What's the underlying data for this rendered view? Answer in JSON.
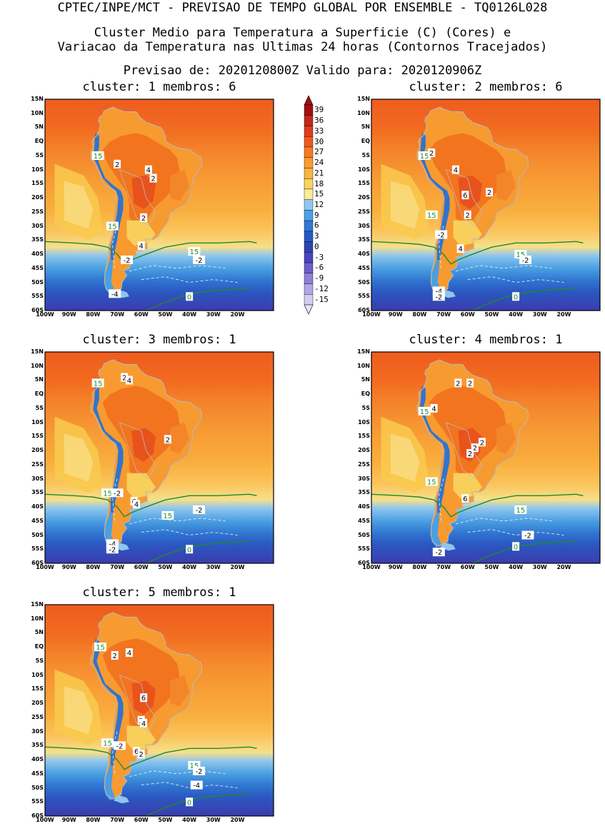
{
  "header": {
    "line1": "CPTEC/INPE/MCT - PREVISAO DE TEMPO GLOBAL POR ENSEMBLE - TQ0126L028",
    "line2": "Cluster Medio para Temperatura a Superficie (C) (Cores) e",
    "line3": "Variacao da Temperatura nas Ultimas 24 horas (Contornos Tracejados)",
    "line4": "Previsao de: 2020120800Z   Valido para: 2020120906Z"
  },
  "colorbar": {
    "labels": [
      "39",
      "36",
      "33",
      "30",
      "27",
      "24",
      "21",
      "18",
      "15",
      "12",
      "9",
      "6",
      "3",
      "0",
      "-3",
      "-6",
      "-9",
      "-12",
      "-15"
    ],
    "colors": [
      "#a01010",
      "#c0281c",
      "#de3c22",
      "#ef5a1e",
      "#f77a22",
      "#f99a33",
      "#fbb63e",
      "#fbd35c",
      "#f9ee97",
      "#8fc8ef",
      "#4aa1e6",
      "#2f78d6",
      "#2359c4",
      "#2b43b3",
      "#4a45bd",
      "#6b5fca",
      "#8d80d6",
      "#b0a6e3",
      "#d3ccef"
    ]
  },
  "axes": {
    "lat_labels": [
      "15N",
      "10N",
      "5N",
      "EQ",
      "5S",
      "10S",
      "15S",
      "20S",
      "25S",
      "30S",
      "35S",
      "40S",
      "45S",
      "50S",
      "55S",
      "60S"
    ],
    "lon_labels": [
      "100W",
      "90W",
      "80W",
      "70W",
      "60W",
      "50W",
      "40W",
      "30W",
      "20W"
    ]
  },
  "panels": [
    {
      "title": "cluster: 1   membros: 6",
      "labels": [
        {
          "t": "15",
          "kind": "green",
          "lon": -78,
          "lat": -5
        },
        {
          "t": "15",
          "kind": "green",
          "lon": -72,
          "lat": -30
        },
        {
          "t": "15",
          "kind": "green",
          "lon": -38,
          "lat": -39
        },
        {
          "t": "0",
          "kind": "green",
          "lon": -40,
          "lat": -55
        },
        {
          "t": "2",
          "kind": "white",
          "lon": -70,
          "lat": -8
        },
        {
          "t": "4",
          "kind": "white",
          "lon": -57,
          "lat": -10
        },
        {
          "t": "2",
          "kind": "white",
          "lon": -55,
          "lat": -13
        },
        {
          "t": "2",
          "kind": "white",
          "lon": -59,
          "lat": -27
        },
        {
          "t": "4",
          "kind": "white",
          "lon": -60,
          "lat": -37
        },
        {
          "t": "-2",
          "kind": "white",
          "lon": -66,
          "lat": -42
        },
        {
          "t": "-2",
          "kind": "white",
          "lon": -36,
          "lat": -42
        },
        {
          "t": "-4",
          "kind": "white",
          "lon": -71,
          "lat": -54
        }
      ]
    },
    {
      "title": "cluster: 2   membros: 6",
      "labels": [
        {
          "t": "15",
          "kind": "green",
          "lon": -78,
          "lat": -5
        },
        {
          "t": "15",
          "kind": "green",
          "lon": -75,
          "lat": -26
        },
        {
          "t": "15",
          "kind": "green",
          "lon": -38,
          "lat": -40
        },
        {
          "t": "0",
          "kind": "green",
          "lon": -40,
          "lat": -55
        },
        {
          "t": "2",
          "kind": "white",
          "lon": -75,
          "lat": -4
        },
        {
          "t": "4",
          "kind": "white",
          "lon": -65,
          "lat": -10
        },
        {
          "t": "6",
          "kind": "white",
          "lon": -61,
          "lat": -19
        },
        {
          "t": "2",
          "kind": "white",
          "lon": -51,
          "lat": -18
        },
        {
          "t": "2",
          "kind": "white",
          "lon": -60,
          "lat": -26
        },
        {
          "t": "-2",
          "kind": "white",
          "lon": -71,
          "lat": -33
        },
        {
          "t": "4",
          "kind": "white",
          "lon": -63,
          "lat": -38
        },
        {
          "t": "-2",
          "kind": "white",
          "lon": -36,
          "lat": -42
        },
        {
          "t": "-4",
          "kind": "white",
          "lon": -72,
          "lat": -53
        },
        {
          "t": "-2",
          "kind": "white",
          "lon": -72,
          "lat": -55
        }
      ]
    },
    {
      "title": "cluster: 3   membros: 1",
      "labels": [
        {
          "t": "15",
          "kind": "green",
          "lon": -78,
          "lat": 4
        },
        {
          "t": "15",
          "kind": "green",
          "lon": -74,
          "lat": -35
        },
        {
          "t": "15",
          "kind": "green",
          "lon": -49,
          "lat": -43
        },
        {
          "t": "0",
          "kind": "green",
          "lon": -40,
          "lat": -55
        },
        {
          "t": "2",
          "kind": "white",
          "lon": -67,
          "lat": 6
        },
        {
          "t": "4",
          "kind": "white",
          "lon": -65,
          "lat": 5
        },
        {
          "t": "2",
          "kind": "white",
          "lon": -49,
          "lat": -16
        },
        {
          "t": "-2",
          "kind": "white",
          "lon": -70,
          "lat": -35
        },
        {
          "t": "6",
          "kind": "white",
          "lon": -63,
          "lat": -38
        },
        {
          "t": "4",
          "kind": "white",
          "lon": -62,
          "lat": -39
        },
        {
          "t": "-2",
          "kind": "white",
          "lon": -36,
          "lat": -41
        },
        {
          "t": "-4",
          "kind": "white",
          "lon": -72,
          "lat": -53
        },
        {
          "t": "-2",
          "kind": "white",
          "lon": -72,
          "lat": -55
        }
      ]
    },
    {
      "title": "cluster: 4   membros: 1",
      "labels": [
        {
          "t": "15",
          "kind": "green",
          "lon": -78,
          "lat": -6
        },
        {
          "t": "15",
          "kind": "green",
          "lon": -75,
          "lat": -31
        },
        {
          "t": "15",
          "kind": "green",
          "lon": -38,
          "lat": -41
        },
        {
          "t": "0",
          "kind": "green",
          "lon": -40,
          "lat": -54
        },
        {
          "t": "4",
          "kind": "white",
          "lon": -74,
          "lat": -5
        },
        {
          "t": "2",
          "kind": "white",
          "lon": -64,
          "lat": 4
        },
        {
          "t": "2",
          "kind": "white",
          "lon": -59,
          "lat": 4
        },
        {
          "t": "2",
          "kind": "white",
          "lon": -54,
          "lat": -17
        },
        {
          "t": "2",
          "kind": "white",
          "lon": -57,
          "lat": -19
        },
        {
          "t": "2",
          "kind": "white",
          "lon": -59,
          "lat": -21
        },
        {
          "t": "6",
          "kind": "white",
          "lon": -61,
          "lat": -37
        },
        {
          "t": "-2",
          "kind": "white",
          "lon": -35,
          "lat": -50
        },
        {
          "t": "-2",
          "kind": "white",
          "lon": -72,
          "lat": -56
        }
      ]
    },
    {
      "title": "cluster: 5   membros: 1",
      "labels": [
        {
          "t": "15",
          "kind": "green",
          "lon": -77,
          "lat": 0
        },
        {
          "t": "15",
          "kind": "green",
          "lon": -74,
          "lat": -34
        },
        {
          "t": "15",
          "kind": "green",
          "lon": -38,
          "lat": -42
        },
        {
          "t": "0",
          "kind": "green",
          "lon": -40,
          "lat": -55
        },
        {
          "t": "2",
          "kind": "white",
          "lon": -71,
          "lat": -3
        },
        {
          "t": "4",
          "kind": "white",
          "lon": -65,
          "lat": -2
        },
        {
          "t": "6",
          "kind": "white",
          "lon": -59,
          "lat": -18
        },
        {
          "t": "2",
          "kind": "white",
          "lon": -60,
          "lat": -26
        },
        {
          "t": "4",
          "kind": "white",
          "lon": -59,
          "lat": -27
        },
        {
          "t": "-2",
          "kind": "white",
          "lon": -69,
          "lat": -35
        },
        {
          "t": "6",
          "kind": "white",
          "lon": -62,
          "lat": -37
        },
        {
          "t": "2",
          "kind": "white",
          "lon": -60,
          "lat": -38
        },
        {
          "t": "-2",
          "kind": "white",
          "lon": -36,
          "lat": -44
        },
        {
          "t": "-4",
          "kind": "white",
          "lon": -37,
          "lat": -49
        }
      ]
    }
  ]
}
